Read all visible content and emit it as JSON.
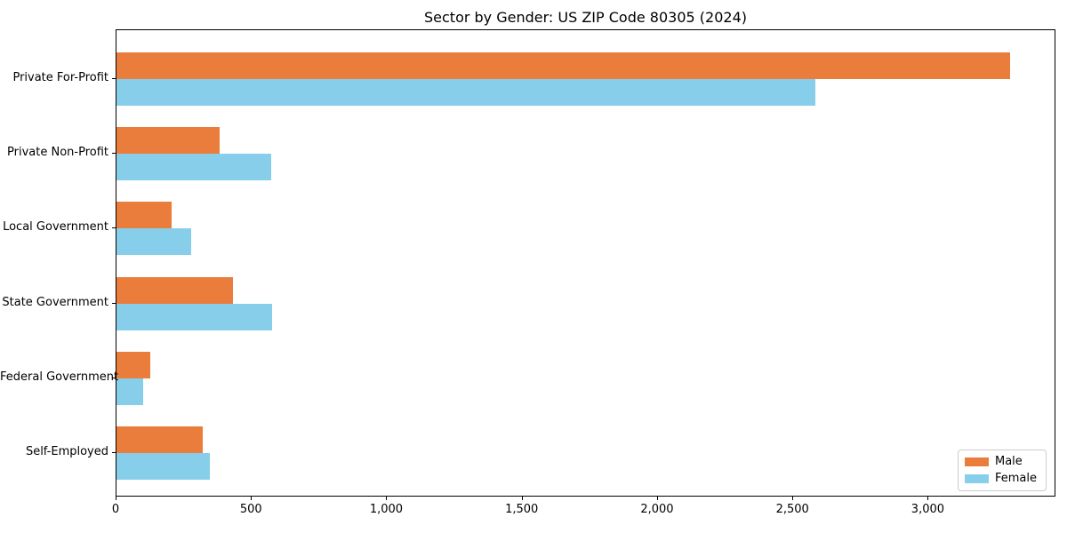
{
  "chart_data": {
    "type": "bar",
    "orientation": "horizontal",
    "title": "Sector by Gender: US ZIP Code 80305 (2024)",
    "categories": [
      "Private For-Profit",
      "Private Non-Profit",
      "Local Government",
      "State Government",
      "Federal Government",
      "Self-Employed"
    ],
    "series": [
      {
        "name": "Male",
        "color": "#EB7D3C",
        "values": [
          3300,
          380,
          205,
          430,
          125,
          320
        ]
      },
      {
        "name": "Female",
        "color": "#87CEEB",
        "values": [
          2580,
          570,
          275,
          575,
          100,
          345
        ]
      }
    ],
    "xlim": [
      0,
      3465
    ],
    "xticks": [
      0,
      500,
      1000,
      1500,
      2000,
      2500,
      3000
    ],
    "xtick_labels": [
      "0",
      "500",
      "1,000",
      "1,500",
      "2,000",
      "2,500",
      "3,000"
    ],
    "xlabel": "",
    "ylabel": "",
    "grid": false,
    "legend_position": "lower right",
    "axis_color": "#000000",
    "background_color": "#ffffff"
  }
}
